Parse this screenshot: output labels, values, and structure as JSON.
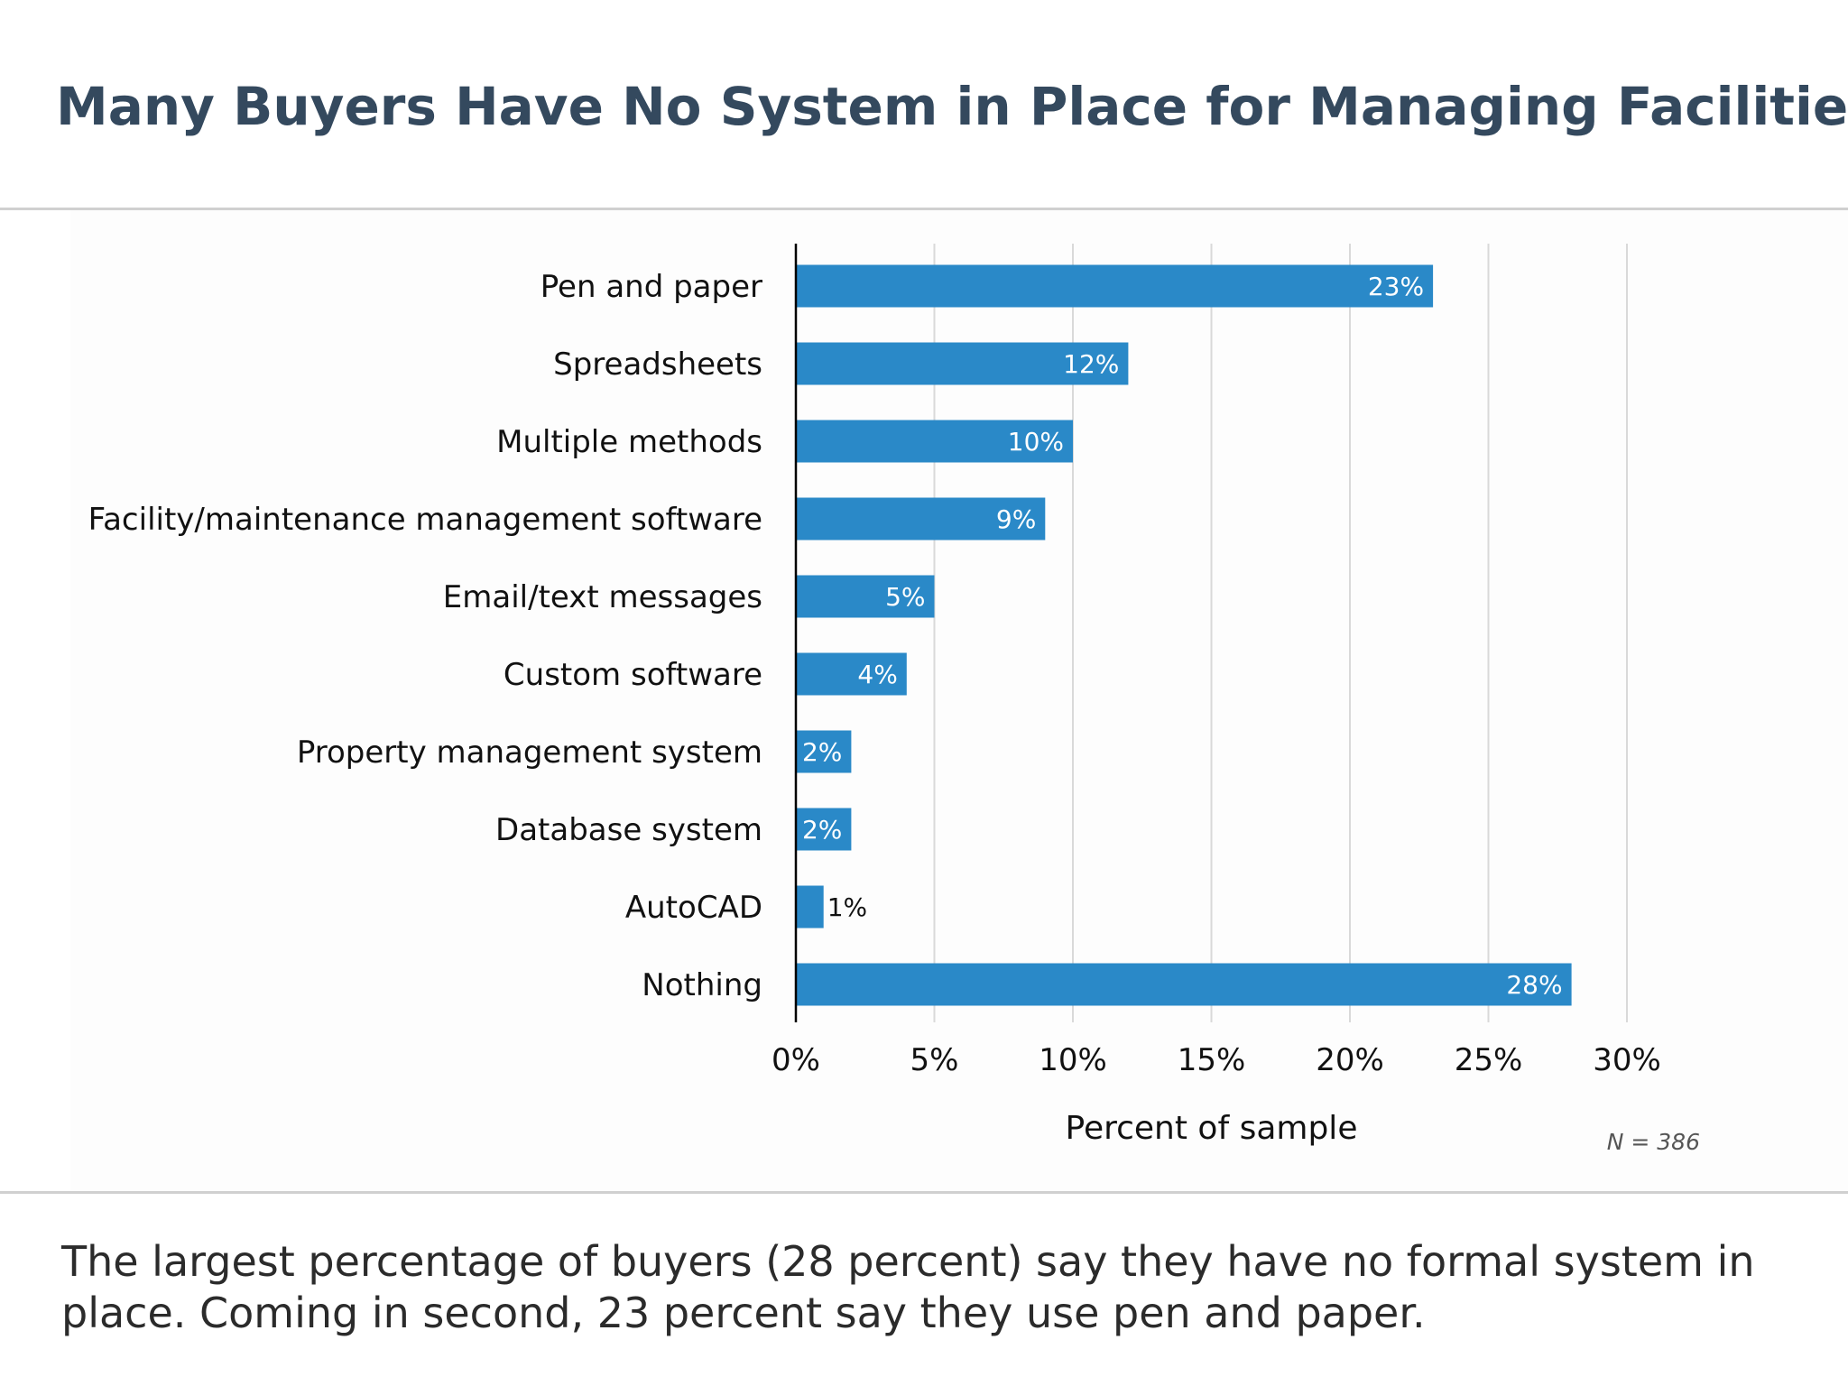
{
  "title": "Many Buyers Have No System in Place for Managing Facilities",
  "footnote": "The largest percentage of buyers (28 percent) say they have no formal system in place. Coming in second, 23 percent say they use pen and paper.",
  "colors": {
    "bar": "#2a89c8",
    "title": "#34495e",
    "grid": "#d9d9d9",
    "axis": "#000000"
  },
  "chart_data": {
    "type": "bar",
    "orientation": "horizontal",
    "categories": [
      "Pen and paper",
      "Spreadsheets",
      "Multiple methods",
      "Facility/maintenance management software",
      "Email/text messages",
      "Custom software",
      "Property management system",
      "Database system",
      "AutoCAD",
      "Nothing"
    ],
    "values": [
      23,
      12,
      10,
      9,
      5,
      4,
      2,
      2,
      1,
      28
    ],
    "data_labels": [
      "23%",
      "12%",
      "10%",
      "9%",
      "5%",
      "4%",
      "2%",
      "2%",
      "1%",
      "28%"
    ],
    "xlabel": "Percent of sample",
    "ylabel": "",
    "xlim": [
      0,
      30
    ],
    "x_ticks": [
      0,
      5,
      10,
      15,
      20,
      25,
      30
    ],
    "x_tick_labels": [
      "0%",
      "5%",
      "10%",
      "15%",
      "20%",
      "25%",
      "30%"
    ],
    "grid": "vertical",
    "annotation": "N = 386"
  }
}
